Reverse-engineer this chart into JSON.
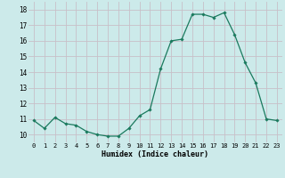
{
  "x": [
    0,
    1,
    2,
    3,
    4,
    5,
    6,
    7,
    8,
    9,
    10,
    11,
    12,
    13,
    14,
    15,
    16,
    17,
    18,
    19,
    20,
    21,
    22,
    23
  ],
  "y": [
    10.9,
    10.4,
    11.1,
    10.7,
    10.6,
    10.2,
    10.0,
    9.9,
    9.9,
    10.4,
    11.2,
    11.6,
    14.2,
    16.0,
    16.1,
    17.7,
    17.7,
    17.5,
    17.8,
    16.4,
    14.6,
    13.3,
    11.0,
    10.9
  ],
  "line_color": "#1a7a5e",
  "marker": "D",
  "marker_size": 1.8,
  "bg_color": "#cceaea",
  "grid_color": "#c8c0c8",
  "xlabel": "Humidex (Indice chaleur)",
  "ylabel_ticks": [
    10,
    11,
    12,
    13,
    14,
    15,
    16,
    17,
    18
  ],
  "xlim": [
    -0.5,
    23.5
  ],
  "ylim": [
    9.5,
    18.5
  ]
}
